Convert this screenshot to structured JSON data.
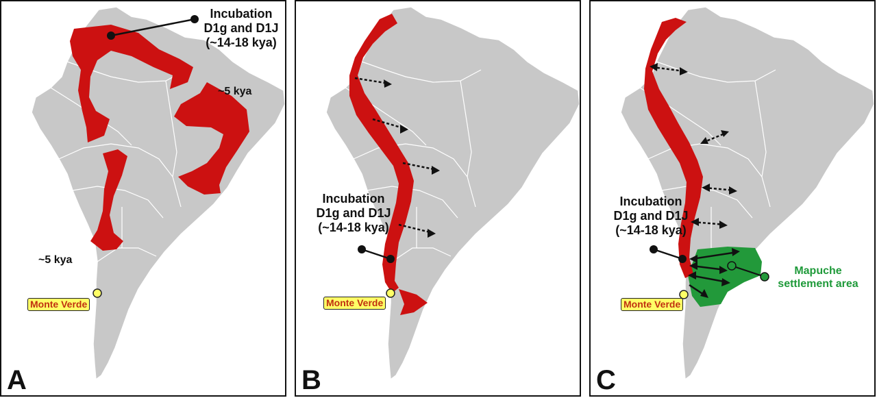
{
  "colors": {
    "land": "#c8c8c8",
    "border": "#ffffff",
    "migration": "#cc1111",
    "mapuche": "#22993a",
    "site_fill": "#ffff66",
    "site_text": "#c03010",
    "marker": "#111111"
  },
  "panels": [
    {
      "letter": "A",
      "incubation": [
        "Incubation",
        "D1g and D1J",
        "(~14-18 kya)"
      ],
      "time_labels": [
        "~5 kya",
        "~5 kya"
      ],
      "site": "Monte Verde"
    },
    {
      "letter": "B",
      "incubation": [
        "Incubation",
        "D1g and D1J",
        "(~14-18 kya)"
      ],
      "site": "Monte Verde"
    },
    {
      "letter": "C",
      "incubation": [
        "Incubation",
        "D1g and D1J",
        "(~14-18 kya)"
      ],
      "site": "Monte Verde",
      "region": [
        "Mapuche",
        "settlement area"
      ]
    }
  ]
}
